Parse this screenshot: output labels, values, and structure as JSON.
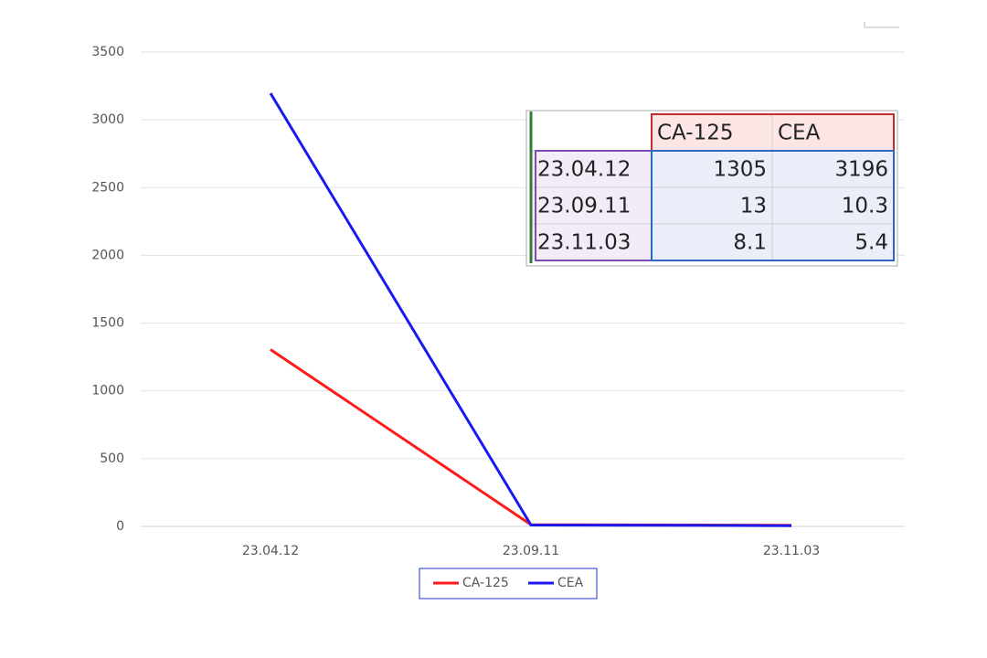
{
  "chart_data": {
    "type": "line",
    "categories": [
      "23.04.12",
      "23.09.11",
      "23.11.03"
    ],
    "series": [
      {
        "name": "CA-125",
        "color": "#ff1a1a",
        "values": [
          1305,
          13,
          8.1
        ]
      },
      {
        "name": "CEA",
        "color": "#1a1aee",
        "values": [
          3196,
          10.3,
          5.4
        ]
      }
    ],
    "ylim": [
      0,
      3500
    ],
    "yticks": [
      0,
      500,
      1000,
      1500,
      2000,
      2500,
      3000,
      3500
    ],
    "grid": true,
    "legend": "bottom"
  }
}
